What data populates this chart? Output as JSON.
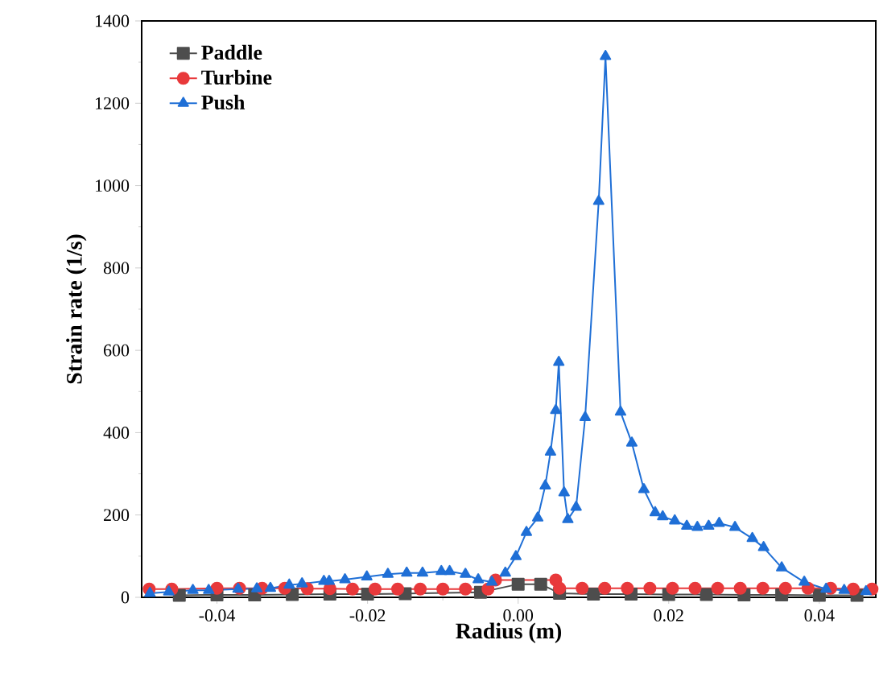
{
  "chart_data": {
    "type": "line",
    "xlabel": "Radius (m)",
    "ylabel": "Strain rate (1/s)",
    "xlim": [
      -0.05,
      0.0475
    ],
    "ylim": [
      0,
      1400
    ],
    "xticks": [
      {
        "value": -0.04,
        "label": "-0.04"
      },
      {
        "value": -0.02,
        "label": "-0.02"
      },
      {
        "value": 0,
        "label": "0.00"
      },
      {
        "value": 0.02,
        "label": "0.02"
      },
      {
        "value": 0.04,
        "label": "0.04"
      }
    ],
    "yticks": [
      0,
      200,
      400,
      600,
      800,
      1000,
      1200,
      1400
    ],
    "legend": "top left",
    "grid": false,
    "series": [
      {
        "name": "Paddle",
        "color": "#4d4d4d",
        "marker": "square",
        "x": [
          -0.045,
          -0.04,
          -0.035,
          -0.03,
          -0.025,
          -0.02,
          -0.015,
          -0.005,
          0.0,
          0.003,
          0.0055,
          0.01,
          0.015,
          0.02,
          0.025,
          0.03,
          0.035,
          0.04,
          0.045
        ],
        "values": [
          5,
          6,
          6,
          7,
          8,
          8,
          9,
          12,
          32,
          32,
          10,
          8,
          8,
          7,
          7,
          6,
          6,
          5,
          5
        ]
      },
      {
        "name": "Turbine",
        "color": "#e8393b",
        "marker": "circle",
        "x": [
          -0.049,
          -0.046,
          -0.04,
          -0.037,
          -0.034,
          -0.031,
          -0.028,
          -0.025,
          -0.022,
          -0.019,
          -0.016,
          -0.013,
          -0.01,
          -0.007,
          -0.004,
          -0.003,
          0.005,
          0.0055,
          0.0085,
          0.0115,
          0.0145,
          0.0175,
          0.0205,
          0.0235,
          0.0265,
          0.0295,
          0.0325,
          0.0355,
          0.0385,
          0.0415,
          0.0445,
          0.047
        ],
        "values": [
          20,
          20,
          22,
          22,
          22,
          22,
          21,
          21,
          20,
          20,
          20,
          20,
          20,
          20,
          20,
          42,
          42,
          22,
          22,
          22,
          22,
          22,
          22,
          22,
          22,
          22,
          22,
          22,
          22,
          22,
          20,
          20
        ]
      },
      {
        "name": "Push",
        "color": "#1f6fd6",
        "marker": "triangle",
        "x": [
          -0.0489,
          -0.0464,
          -0.0432,
          -0.0411,
          -0.0372,
          -0.0347,
          -0.0329,
          -0.0304,
          -0.0287,
          -0.0258,
          -0.0251,
          -0.023,
          -0.0201,
          -0.0173,
          -0.0148,
          -0.0127,
          -0.0102,
          -0.0091,
          -0.007,
          -0.0053,
          -0.0035,
          -0.0017,
          -0.0003,
          0.0011,
          0.0026,
          0.0036,
          0.0043,
          0.005,
          0.0054,
          0.0061,
          0.0066,
          0.0077,
          0.0089,
          0.0107,
          0.0116,
          0.0136,
          0.0151,
          0.0167,
          0.0182,
          0.0192,
          0.0208,
          0.0224,
          0.0238,
          0.0253,
          0.0267,
          0.0288,
          0.0311,
          0.0326,
          0.035,
          0.038,
          0.0409,
          0.0433,
          0.0462
        ],
        "values": [
          10,
          13,
          17,
          17,
          20,
          21,
          22,
          30,
          33,
          39,
          39,
          43,
          50,
          56,
          59,
          59,
          63,
          63,
          56,
          43,
          37,
          59,
          99,
          158,
          193,
          271,
          353,
          454,
          571,
          254,
          189,
          219,
          437,
          962,
          1314,
          450,
          375,
          262,
          206,
          196,
          186,
          173,
          170,
          173,
          180,
          170,
          143,
          121,
          72,
          37,
          20,
          17,
          14
        ]
      }
    ]
  }
}
